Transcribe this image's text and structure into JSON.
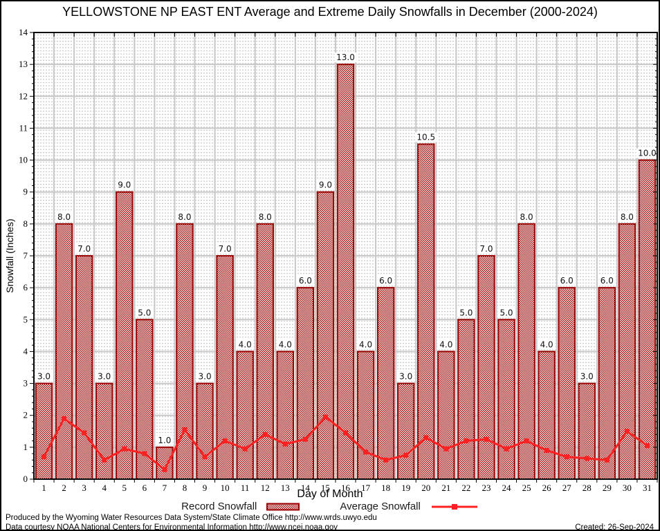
{
  "title": "YELLOWSTONE NP EAST ENT Average and Extreme Daily Snowfalls in December (2000-2024)",
  "chart_data": {
    "type": "bar",
    "title": "YELLOWSTONE NP EAST ENT Average and Extreme Daily Snowfalls in December (2000-2024)",
    "categories": [
      1,
      2,
      3,
      4,
      5,
      6,
      7,
      8,
      9,
      10,
      11,
      12,
      13,
      14,
      15,
      16,
      17,
      18,
      19,
      20,
      21,
      22,
      23,
      24,
      25,
      26,
      27,
      28,
      29,
      30,
      31
    ],
    "series": [
      {
        "name": "Record Snowfall",
        "type": "bar",
        "values": [
          3.0,
          8.0,
          7.0,
          3.0,
          9.0,
          5.0,
          1.0,
          8.0,
          3.0,
          7.0,
          4.0,
          8.0,
          4.0,
          6.0,
          9.0,
          13.0,
          4.0,
          6.0,
          3.0,
          10.5,
          4.0,
          5.0,
          7.0,
          5.0,
          8.0,
          4.0,
          6.0,
          3.0,
          6.0,
          8.0,
          10.0
        ]
      },
      {
        "name": "Average Snowfall",
        "type": "line",
        "values": [
          0.7,
          1.9,
          1.45,
          0.6,
          0.95,
          0.8,
          0.3,
          1.55,
          0.7,
          1.2,
          0.95,
          1.4,
          1.1,
          1.25,
          1.95,
          1.45,
          0.85,
          0.6,
          0.75,
          1.3,
          0.95,
          1.2,
          1.25,
          0.95,
          1.2,
          0.9,
          0.7,
          0.65,
          0.6,
          1.5,
          1.05
        ]
      }
    ],
    "xlabel": "Day of Month",
    "ylabel": "Snowfall (Inches)",
    "ylim": [
      0,
      14
    ],
    "yticks": [
      0,
      1,
      2,
      3,
      4,
      5,
      6,
      7,
      8,
      9,
      10,
      11,
      12,
      13,
      14
    ],
    "grid": true,
    "legend_position": "bottom"
  },
  "colors": {
    "bar_fill": "#990000",
    "line": "#ff2121",
    "major_grid": "#c8c8c8",
    "minor_grid": "#bcbcbc",
    "frame": "#000000"
  },
  "footer": {
    "line1": "Produced by the Wyoming Water Resources Data System/State Climate Office http://www.wrds.uwyo.edu",
    "line2": "Data courtesy NOAA National Centers for Environmental Information http://www.ncei.noaa.gov",
    "created": "Created: 26-Sep-2024"
  }
}
